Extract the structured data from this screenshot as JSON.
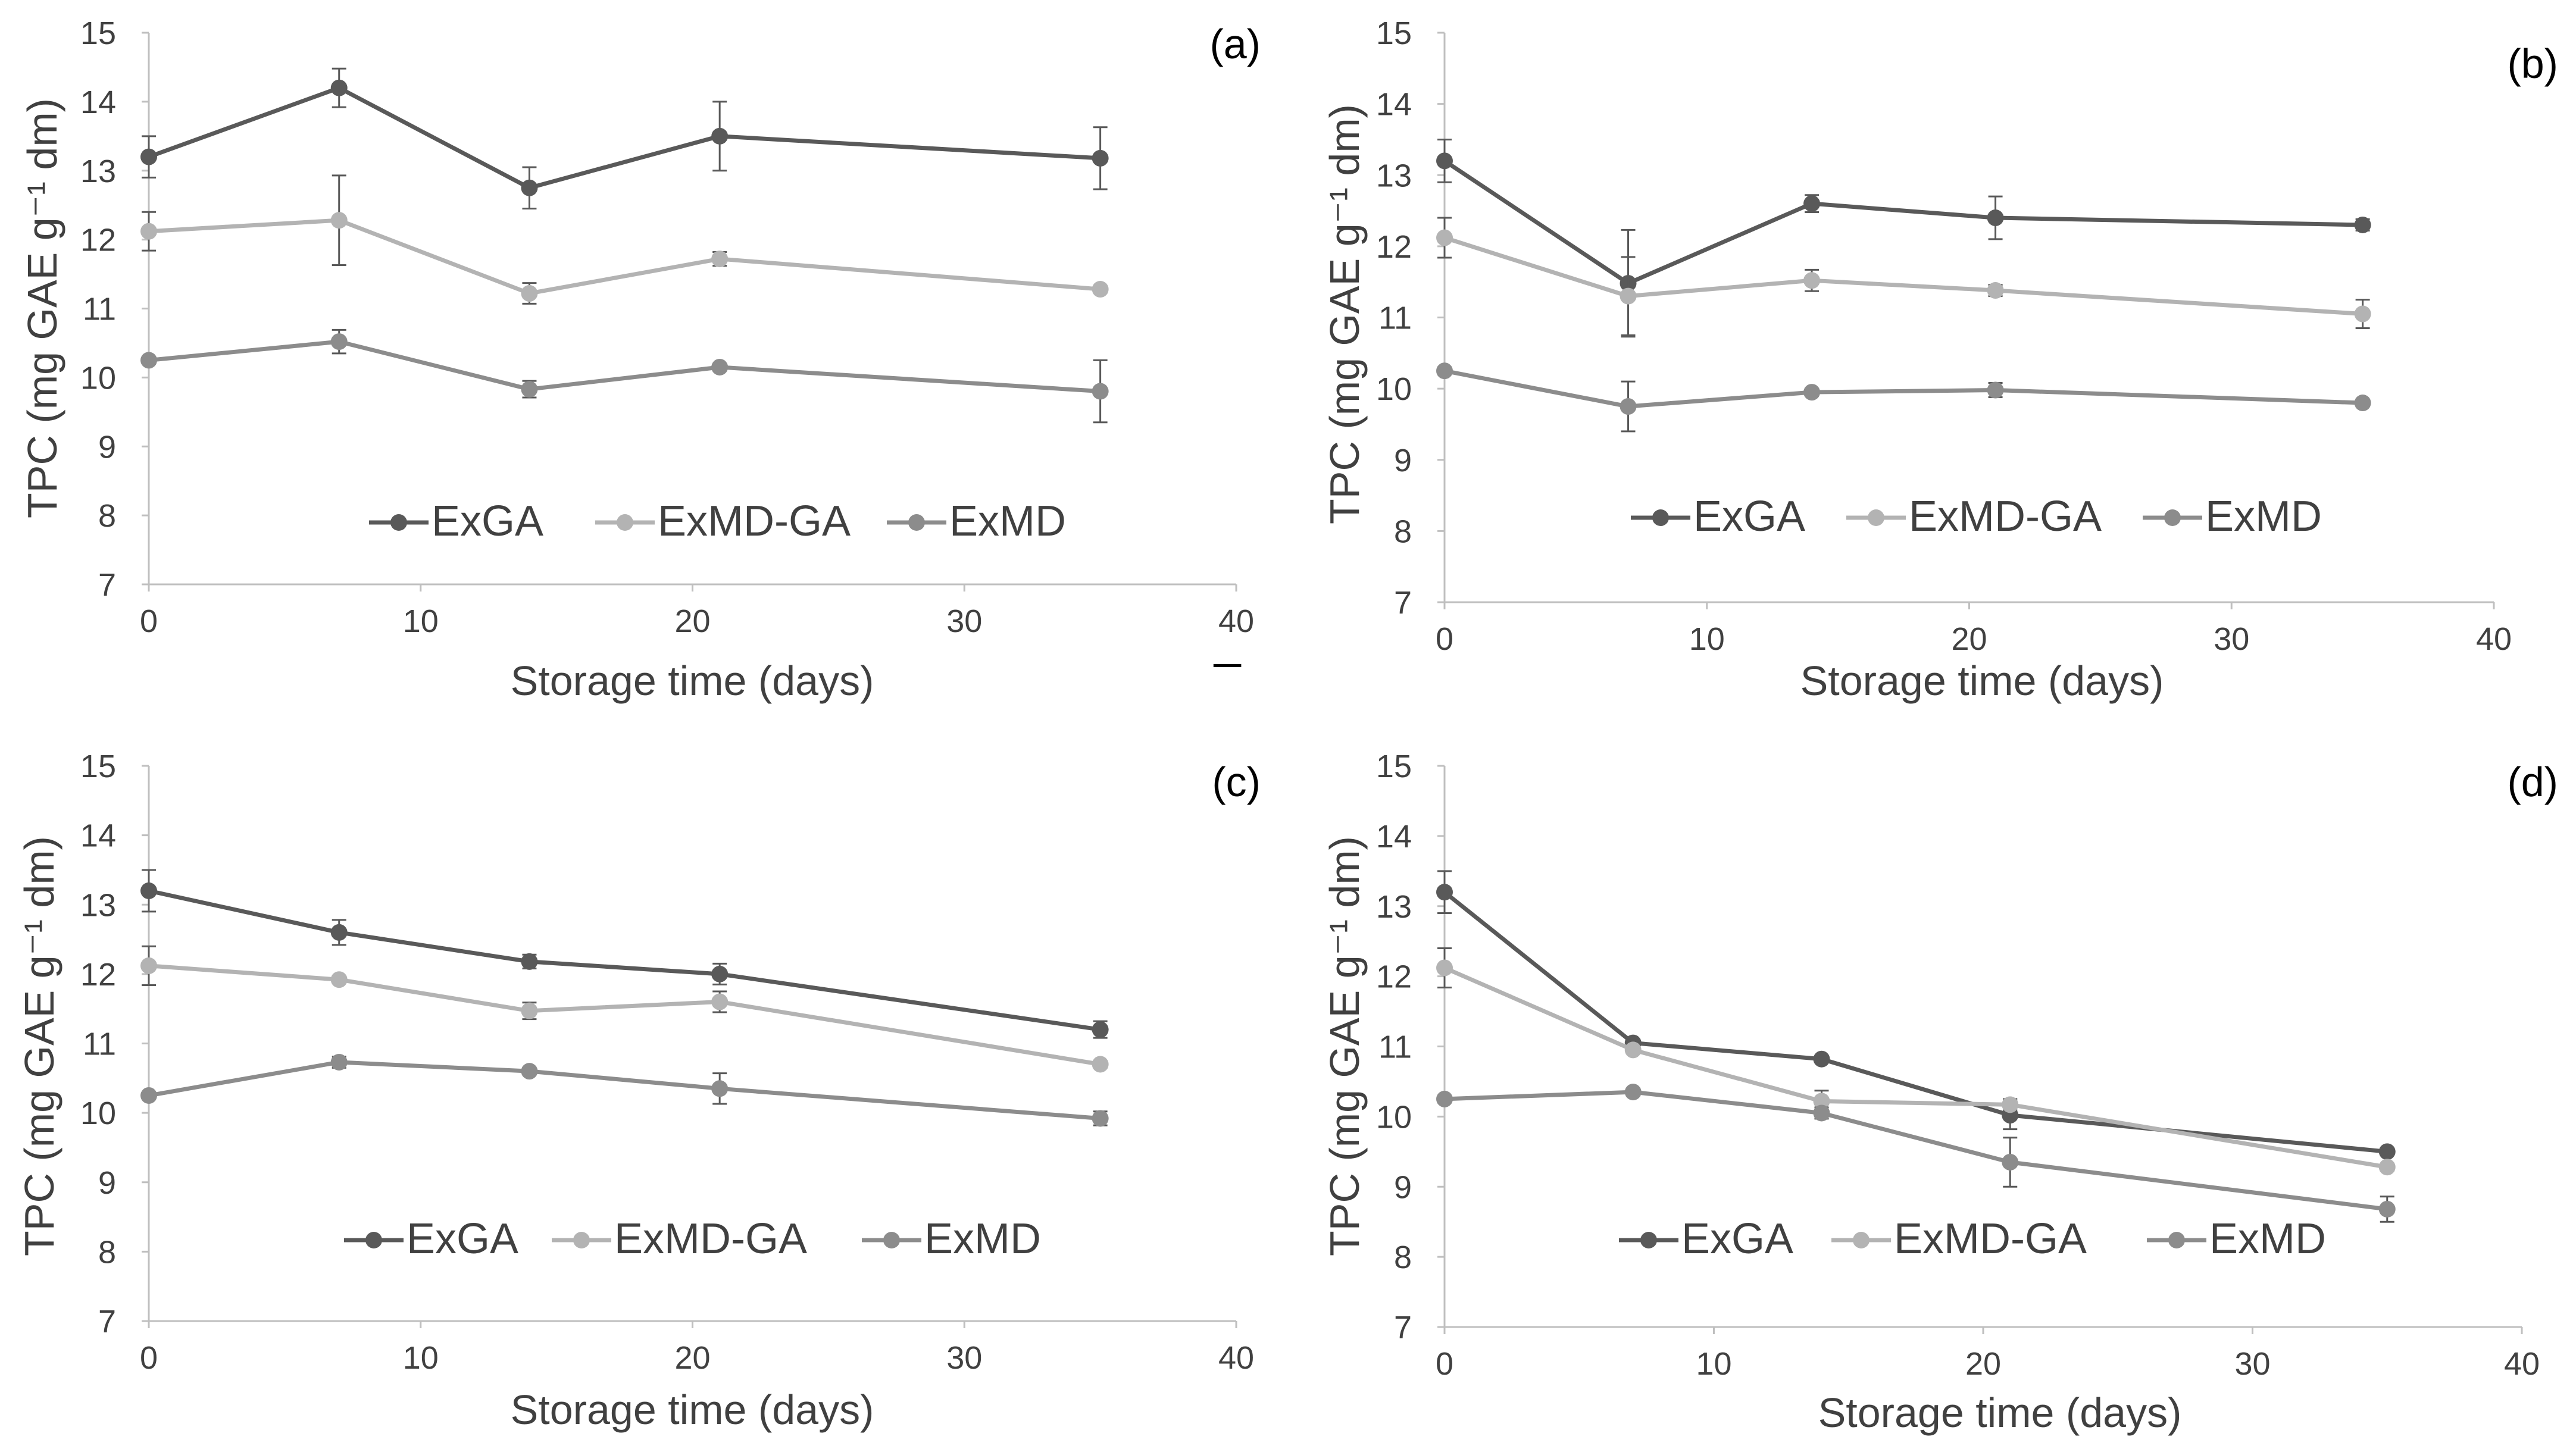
{
  "figure": {
    "stray_mark": "_"
  },
  "chart_data": [
    {
      "type": "line",
      "panel_label": "(a)",
      "title": "",
      "xlabel": "Storage time (days)",
      "ylabel": "TPC (mg GAE g⁻¹ dm)",
      "xlim": [
        0,
        40
      ],
      "ylim": [
        7,
        15
      ],
      "x_ticks": [
        0,
        10,
        20,
        30,
        40
      ],
      "y_ticks": [
        7,
        8,
        9,
        10,
        11,
        12,
        13,
        14,
        15
      ],
      "grid": false,
      "legend_position": "bottom-center",
      "x": [
        0,
        7,
        14,
        21,
        35
      ],
      "series": [
        {
          "name": "ExGA",
          "color": "#595959",
          "values": [
            13.2,
            14.2,
            12.75,
            13.5,
            13.18
          ],
          "errors": [
            0.3,
            0.28,
            0.3,
            0.5,
            0.45
          ]
        },
        {
          "name": "ExMD-GA",
          "color": "#b3b3b3",
          "values": [
            12.12,
            12.28,
            11.22,
            11.72,
            11.28
          ],
          "errors": [
            0.28,
            0.65,
            0.15,
            0.1,
            0.05
          ]
        },
        {
          "name": "ExMD",
          "color": "#8c8c8c",
          "values": [
            10.25,
            10.52,
            9.83,
            10.15,
            9.8
          ],
          "errors": [
            0.05,
            0.17,
            0.12,
            0.05,
            0.45
          ]
        }
      ]
    },
    {
      "type": "line",
      "panel_label": "(b)",
      "title": "",
      "xlabel": "Storage time (days)",
      "ylabel": "TPC (mg GAE g⁻¹ dm)",
      "xlim": [
        0,
        40
      ],
      "ylim": [
        7,
        15
      ],
      "x_ticks": [
        0,
        10,
        20,
        30,
        40
      ],
      "y_ticks": [
        7,
        8,
        9,
        10,
        11,
        12,
        13,
        14,
        15
      ],
      "grid": false,
      "legend_position": "bottom-center",
      "x": [
        0,
        7,
        14,
        21,
        35
      ],
      "series": [
        {
          "name": "ExGA",
          "color": "#595959",
          "values": [
            13.2,
            11.48,
            12.6,
            12.4,
            12.3
          ],
          "errors": [
            0.3,
            0.75,
            0.12,
            0.3,
            0.08
          ]
        },
        {
          "name": "ExMD-GA",
          "color": "#b3b3b3",
          "values": [
            12.12,
            11.3,
            11.52,
            11.38,
            11.05
          ],
          "errors": [
            0.28,
            0.55,
            0.15,
            0.08,
            0.2
          ]
        },
        {
          "name": "ExMD",
          "color": "#8c8c8c",
          "values": [
            10.25,
            9.75,
            9.95,
            9.98,
            9.8
          ],
          "errors": [
            0.05,
            0.35,
            0.05,
            0.1,
            0.05
          ]
        }
      ]
    },
    {
      "type": "line",
      "panel_label": "(c)",
      "title": "",
      "xlabel": "Storage time (days)",
      "ylabel": "TPC (mg GAE g⁻¹ dm)",
      "xlim": [
        0,
        40
      ],
      "ylim": [
        7,
        15
      ],
      "x_ticks": [
        0,
        10,
        20,
        30,
        40
      ],
      "y_ticks": [
        7,
        8,
        9,
        10,
        11,
        12,
        13,
        14,
        15
      ],
      "grid": false,
      "legend_position": "bottom-center",
      "x": [
        0,
        7,
        14,
        21,
        35
      ],
      "series": [
        {
          "name": "ExGA",
          "color": "#595959",
          "values": [
            13.2,
            12.6,
            12.18,
            12.0,
            11.2
          ],
          "errors": [
            0.3,
            0.18,
            0.1,
            0.15,
            0.12
          ]
        },
        {
          "name": "ExMD-GA",
          "color": "#b3b3b3",
          "values": [
            12.12,
            11.92,
            11.47,
            11.6,
            10.7
          ],
          "errors": [
            0.28,
            0.05,
            0.12,
            0.15,
            0.05
          ]
        },
        {
          "name": "ExMD",
          "color": "#8c8c8c",
          "values": [
            10.25,
            10.73,
            10.6,
            10.35,
            9.92
          ],
          "errors": [
            0.05,
            0.08,
            0.05,
            0.22,
            0.1
          ]
        }
      ]
    },
    {
      "type": "line",
      "panel_label": "(d)",
      "title": "",
      "xlabel": "Storage time (days)",
      "ylabel": "TPC (mg GAE g⁻¹ dm)",
      "xlim": [
        0,
        40
      ],
      "ylim": [
        7,
        15
      ],
      "x_ticks": [
        0,
        10,
        20,
        30,
        40
      ],
      "y_ticks": [
        7,
        8,
        9,
        10,
        11,
        12,
        13,
        14,
        15
      ],
      "grid": false,
      "legend_position": "bottom-center",
      "x": [
        0,
        7,
        14,
        21,
        35
      ],
      "series": [
        {
          "name": "ExGA",
          "color": "#595959",
          "values": [
            13.2,
            11.05,
            10.82,
            10.02,
            9.5
          ],
          "errors": [
            0.3,
            0.05,
            0.05,
            0.2,
            0.05
          ]
        },
        {
          "name": "ExMD-GA",
          "color": "#b3b3b3",
          "values": [
            12.12,
            10.95,
            10.22,
            10.17,
            9.28
          ],
          "errors": [
            0.28,
            0.05,
            0.15,
            0.08,
            0.05
          ]
        },
        {
          "name": "ExMD",
          "color": "#8c8c8c",
          "values": [
            10.25,
            10.35,
            10.05,
            9.35,
            8.68
          ],
          "errors": [
            0.05,
            0.05,
            0.08,
            0.35,
            0.18
          ]
        }
      ]
    }
  ]
}
